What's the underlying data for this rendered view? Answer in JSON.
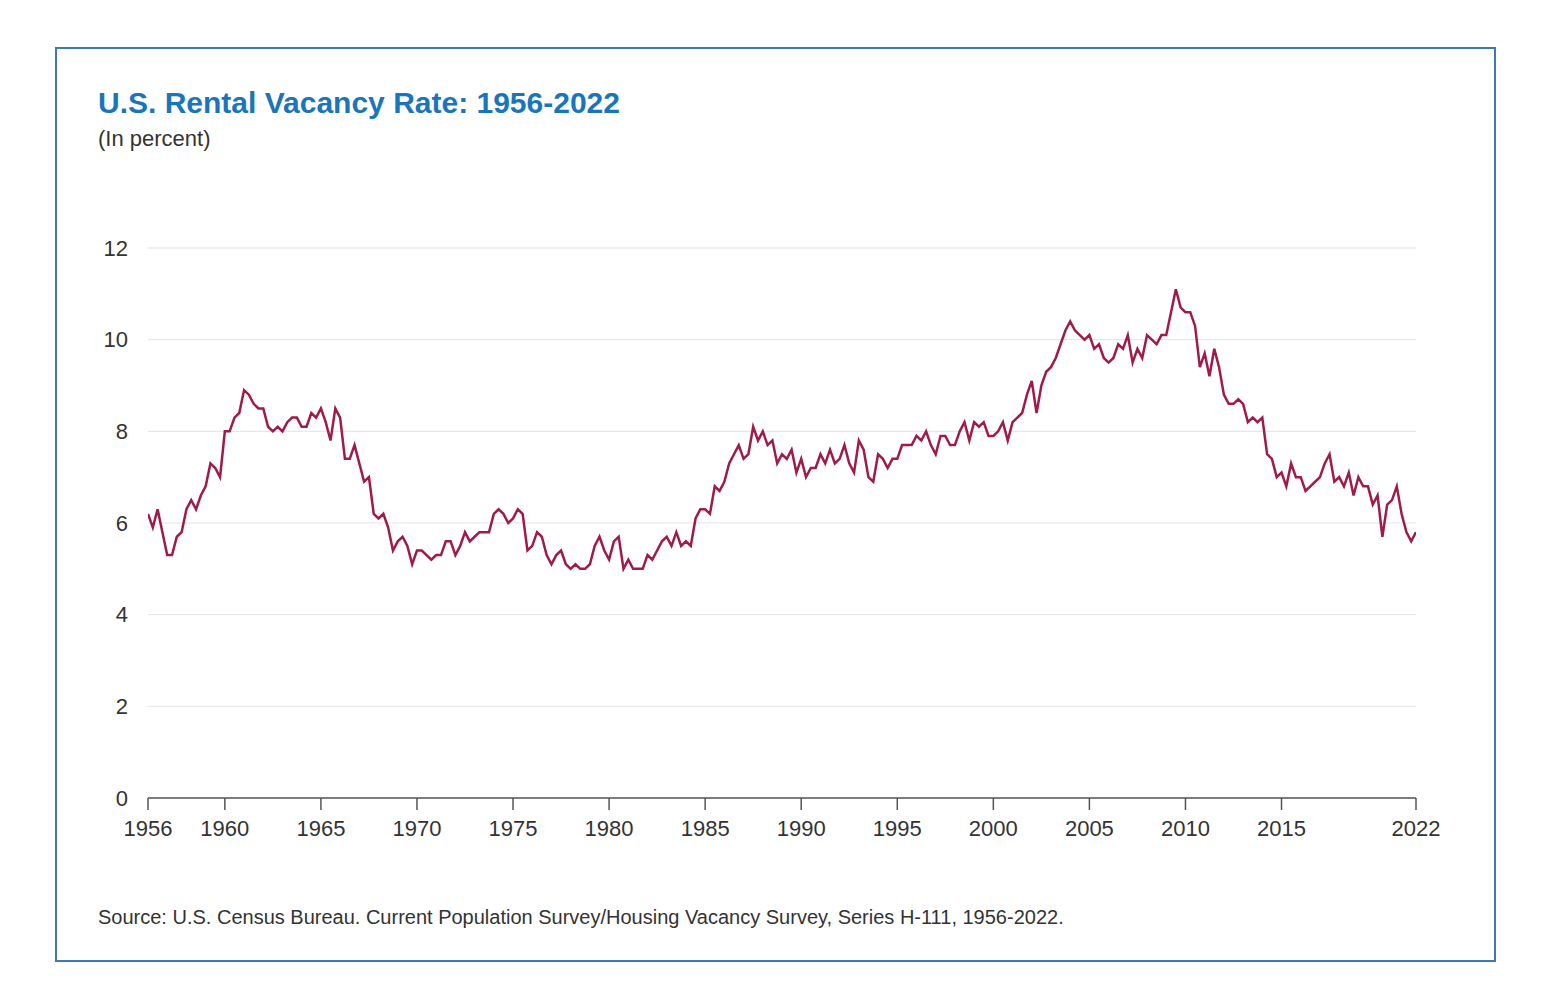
{
  "chart_data": {
    "type": "line",
    "title": "U.S. Rental Vacancy Rate: 1956-2022",
    "subtitle": "(In percent)",
    "source": "Source: U.S. Census Bureau. Current Population Survey/Housing Vacancy Survey, Series H-111, 1956-2022.",
    "color": "#9e1b4b",
    "grid": true,
    "xlim": [
      1956,
      2022
    ],
    "xticks": [
      1956,
      1960,
      1965,
      1970,
      1975,
      1980,
      1985,
      1990,
      1995,
      2000,
      2005,
      2010,
      2015,
      2022
    ],
    "ylim": [
      0,
      12
    ],
    "yticks": [
      0,
      2,
      4,
      6,
      8,
      10,
      12
    ],
    "x": [
      1956,
      1956.25,
      1956.5,
      1956.75,
      1957,
      1957.25,
      1957.5,
      1957.75,
      1958,
      1958.25,
      1958.5,
      1958.75,
      1959,
      1959.25,
      1959.5,
      1959.75,
      1960,
      1960.25,
      1960.5,
      1960.75,
      1961,
      1961.25,
      1961.5,
      1961.75,
      1962,
      1962.25,
      1962.5,
      1962.75,
      1963,
      1963.25,
      1963.5,
      1963.75,
      1964,
      1964.25,
      1964.5,
      1964.75,
      1965,
      1965.25,
      1965.5,
      1965.75,
      1966,
      1966.25,
      1966.5,
      1966.75,
      1967,
      1967.25,
      1967.5,
      1967.75,
      1968,
      1968.25,
      1968.5,
      1968.75,
      1969,
      1969.25,
      1969.5,
      1969.75,
      1970,
      1970.25,
      1970.5,
      1970.75,
      1971,
      1971.25,
      1971.5,
      1971.75,
      1972,
      1972.25,
      1972.5,
      1972.75,
      1973,
      1973.25,
      1973.5,
      1973.75,
      1974,
      1974.25,
      1974.5,
      1974.75,
      1975,
      1975.25,
      1975.5,
      1975.75,
      1976,
      1976.25,
      1976.5,
      1976.75,
      1977,
      1977.25,
      1977.5,
      1977.75,
      1978,
      1978.25,
      1978.5,
      1978.75,
      1979,
      1979.25,
      1979.5,
      1979.75,
      1980,
      1980.25,
      1980.5,
      1980.75,
      1981,
      1981.25,
      1981.5,
      1981.75,
      1982,
      1982.25,
      1982.5,
      1982.75,
      1983,
      1983.25,
      1983.5,
      1983.75,
      1984,
      1984.25,
      1984.5,
      1984.75,
      1985,
      1985.25,
      1985.5,
      1985.75,
      1986,
      1986.25,
      1986.5,
      1986.75,
      1987,
      1987.25,
      1987.5,
      1987.75,
      1988,
      1988.25,
      1988.5,
      1988.75,
      1989,
      1989.25,
      1989.5,
      1989.75,
      1990,
      1990.25,
      1990.5,
      1990.75,
      1991,
      1991.25,
      1991.5,
      1991.75,
      1992,
      1992.25,
      1992.5,
      1992.75,
      1993,
      1993.25,
      1993.5,
      1993.75,
      1994,
      1994.25,
      1994.5,
      1994.75,
      1995,
      1995.25,
      1995.5,
      1995.75,
      1996,
      1996.25,
      1996.5,
      1996.75,
      1997,
      1997.25,
      1997.5,
      1997.75,
      1998,
      1998.25,
      1998.5,
      1998.75,
      1999,
      1999.25,
      1999.5,
      1999.75,
      2000,
      2000.25,
      2000.5,
      2000.75,
      2001,
      2001.25,
      2001.5,
      2001.75,
      2002,
      2002.25,
      2002.5,
      2002.75,
      2003,
      2003.25,
      2003.5,
      2003.75,
      2004,
      2004.25,
      2004.5,
      2004.75,
      2005,
      2005.25,
      2005.5,
      2005.75,
      2006,
      2006.25,
      2006.5,
      2006.75,
      2007,
      2007.25,
      2007.5,
      2007.75,
      2008,
      2008.25,
      2008.5,
      2008.75,
      2009,
      2009.25,
      2009.5,
      2009.75,
      2010,
      2010.25,
      2010.5,
      2010.75,
      2011,
      2011.25,
      2011.5,
      2011.75,
      2012,
      2012.25,
      2012.5,
      2012.75,
      2013,
      2013.25,
      2013.5,
      2013.75,
      2014,
      2014.25,
      2014.5,
      2014.75,
      2015,
      2015.25,
      2015.5,
      2015.75,
      2016,
      2016.25,
      2016.5,
      2016.75,
      2017,
      2017.25,
      2017.5,
      2017.75,
      2018,
      2018.25,
      2018.5,
      2018.75,
      2019,
      2019.25,
      2019.5,
      2019.75,
      2020,
      2020.25,
      2020.5,
      2020.75,
      2021,
      2021.25,
      2021.5,
      2021.75,
      2022
    ],
    "values": [
      6.2,
      5.9,
      6.3,
      5.8,
      5.3,
      5.3,
      5.7,
      5.8,
      6.3,
      6.5,
      6.3,
      6.6,
      6.8,
      7.3,
      7.2,
      7.0,
      8.0,
      8.0,
      8.3,
      8.4,
      8.9,
      8.8,
      8.6,
      8.5,
      8.5,
      8.1,
      8.0,
      8.1,
      8.0,
      8.2,
      8.3,
      8.3,
      8.1,
      8.1,
      8.4,
      8.3,
      8.5,
      8.2,
      7.8,
      8.5,
      8.3,
      7.4,
      7.4,
      7.7,
      7.3,
      6.9,
      7.0,
      6.2,
      6.1,
      6.2,
      5.9,
      5.4,
      5.6,
      5.7,
      5.5,
      5.1,
      5.4,
      5.4,
      5.3,
      5.2,
      5.3,
      5.3,
      5.6,
      5.6,
      5.3,
      5.5,
      5.8,
      5.6,
      5.7,
      5.8,
      5.8,
      5.8,
      6.2,
      6.3,
      6.2,
      6.0,
      6.1,
      6.3,
      6.2,
      5.4,
      5.5,
      5.8,
      5.7,
      5.3,
      5.1,
      5.3,
      5.4,
      5.1,
      5.0,
      5.1,
      5.0,
      5.0,
      5.1,
      5.5,
      5.7,
      5.4,
      5.2,
      5.6,
      5.7,
      5.0,
      5.2,
      5.0,
      5.0,
      5.0,
      5.3,
      5.2,
      5.4,
      5.6,
      5.7,
      5.5,
      5.8,
      5.5,
      5.6,
      5.5,
      6.1,
      6.3,
      6.3,
      6.2,
      6.8,
      6.7,
      6.9,
      7.3,
      7.5,
      7.7,
      7.4,
      7.5,
      8.1,
      7.8,
      8.0,
      7.7,
      7.8,
      7.3,
      7.5,
      7.4,
      7.6,
      7.1,
      7.4,
      7.0,
      7.2,
      7.2,
      7.5,
      7.3,
      7.6,
      7.3,
      7.4,
      7.7,
      7.3,
      7.1,
      7.8,
      7.6,
      7.0,
      6.9,
      7.5,
      7.4,
      7.2,
      7.4,
      7.4,
      7.7,
      7.7,
      7.7,
      7.9,
      7.8,
      8.0,
      7.7,
      7.5,
      7.9,
      7.9,
      7.7,
      7.7,
      8.0,
      8.2,
      7.8,
      8.2,
      8.1,
      8.2,
      7.9,
      7.9,
      8.0,
      8.2,
      7.8,
      8.2,
      8.3,
      8.4,
      8.8,
      9.1,
      8.4,
      9.0,
      9.3,
      9.4,
      9.6,
      9.9,
      10.2,
      10.4,
      10.2,
      10.1,
      10.0,
      10.1,
      9.8,
      9.9,
      9.6,
      9.5,
      9.6,
      9.9,
      9.8,
      10.1,
      9.5,
      9.8,
      9.6,
      10.1,
      10.0,
      9.9,
      10.1,
      10.1,
      10.6,
      11.1,
      10.7,
      10.6,
      10.6,
      10.3,
      9.4,
      9.7,
      9.2,
      9.8,
      9.4,
      8.8,
      8.6,
      8.6,
      8.7,
      8.6,
      8.2,
      8.3,
      8.2,
      8.3,
      7.5,
      7.4,
      7.0,
      7.1,
      6.8,
      7.3,
      7.0,
      7.0,
      6.7,
      6.8,
      6.9,
      7.0,
      7.3,
      7.5,
      6.9,
      7.0,
      6.8,
      7.1,
      6.6,
      7.0,
      6.8,
      6.8,
      6.4,
      6.6,
      5.7,
      6.4,
      6.5,
      6.8,
      6.2,
      5.8,
      5.6,
      5.8
    ]
  }
}
